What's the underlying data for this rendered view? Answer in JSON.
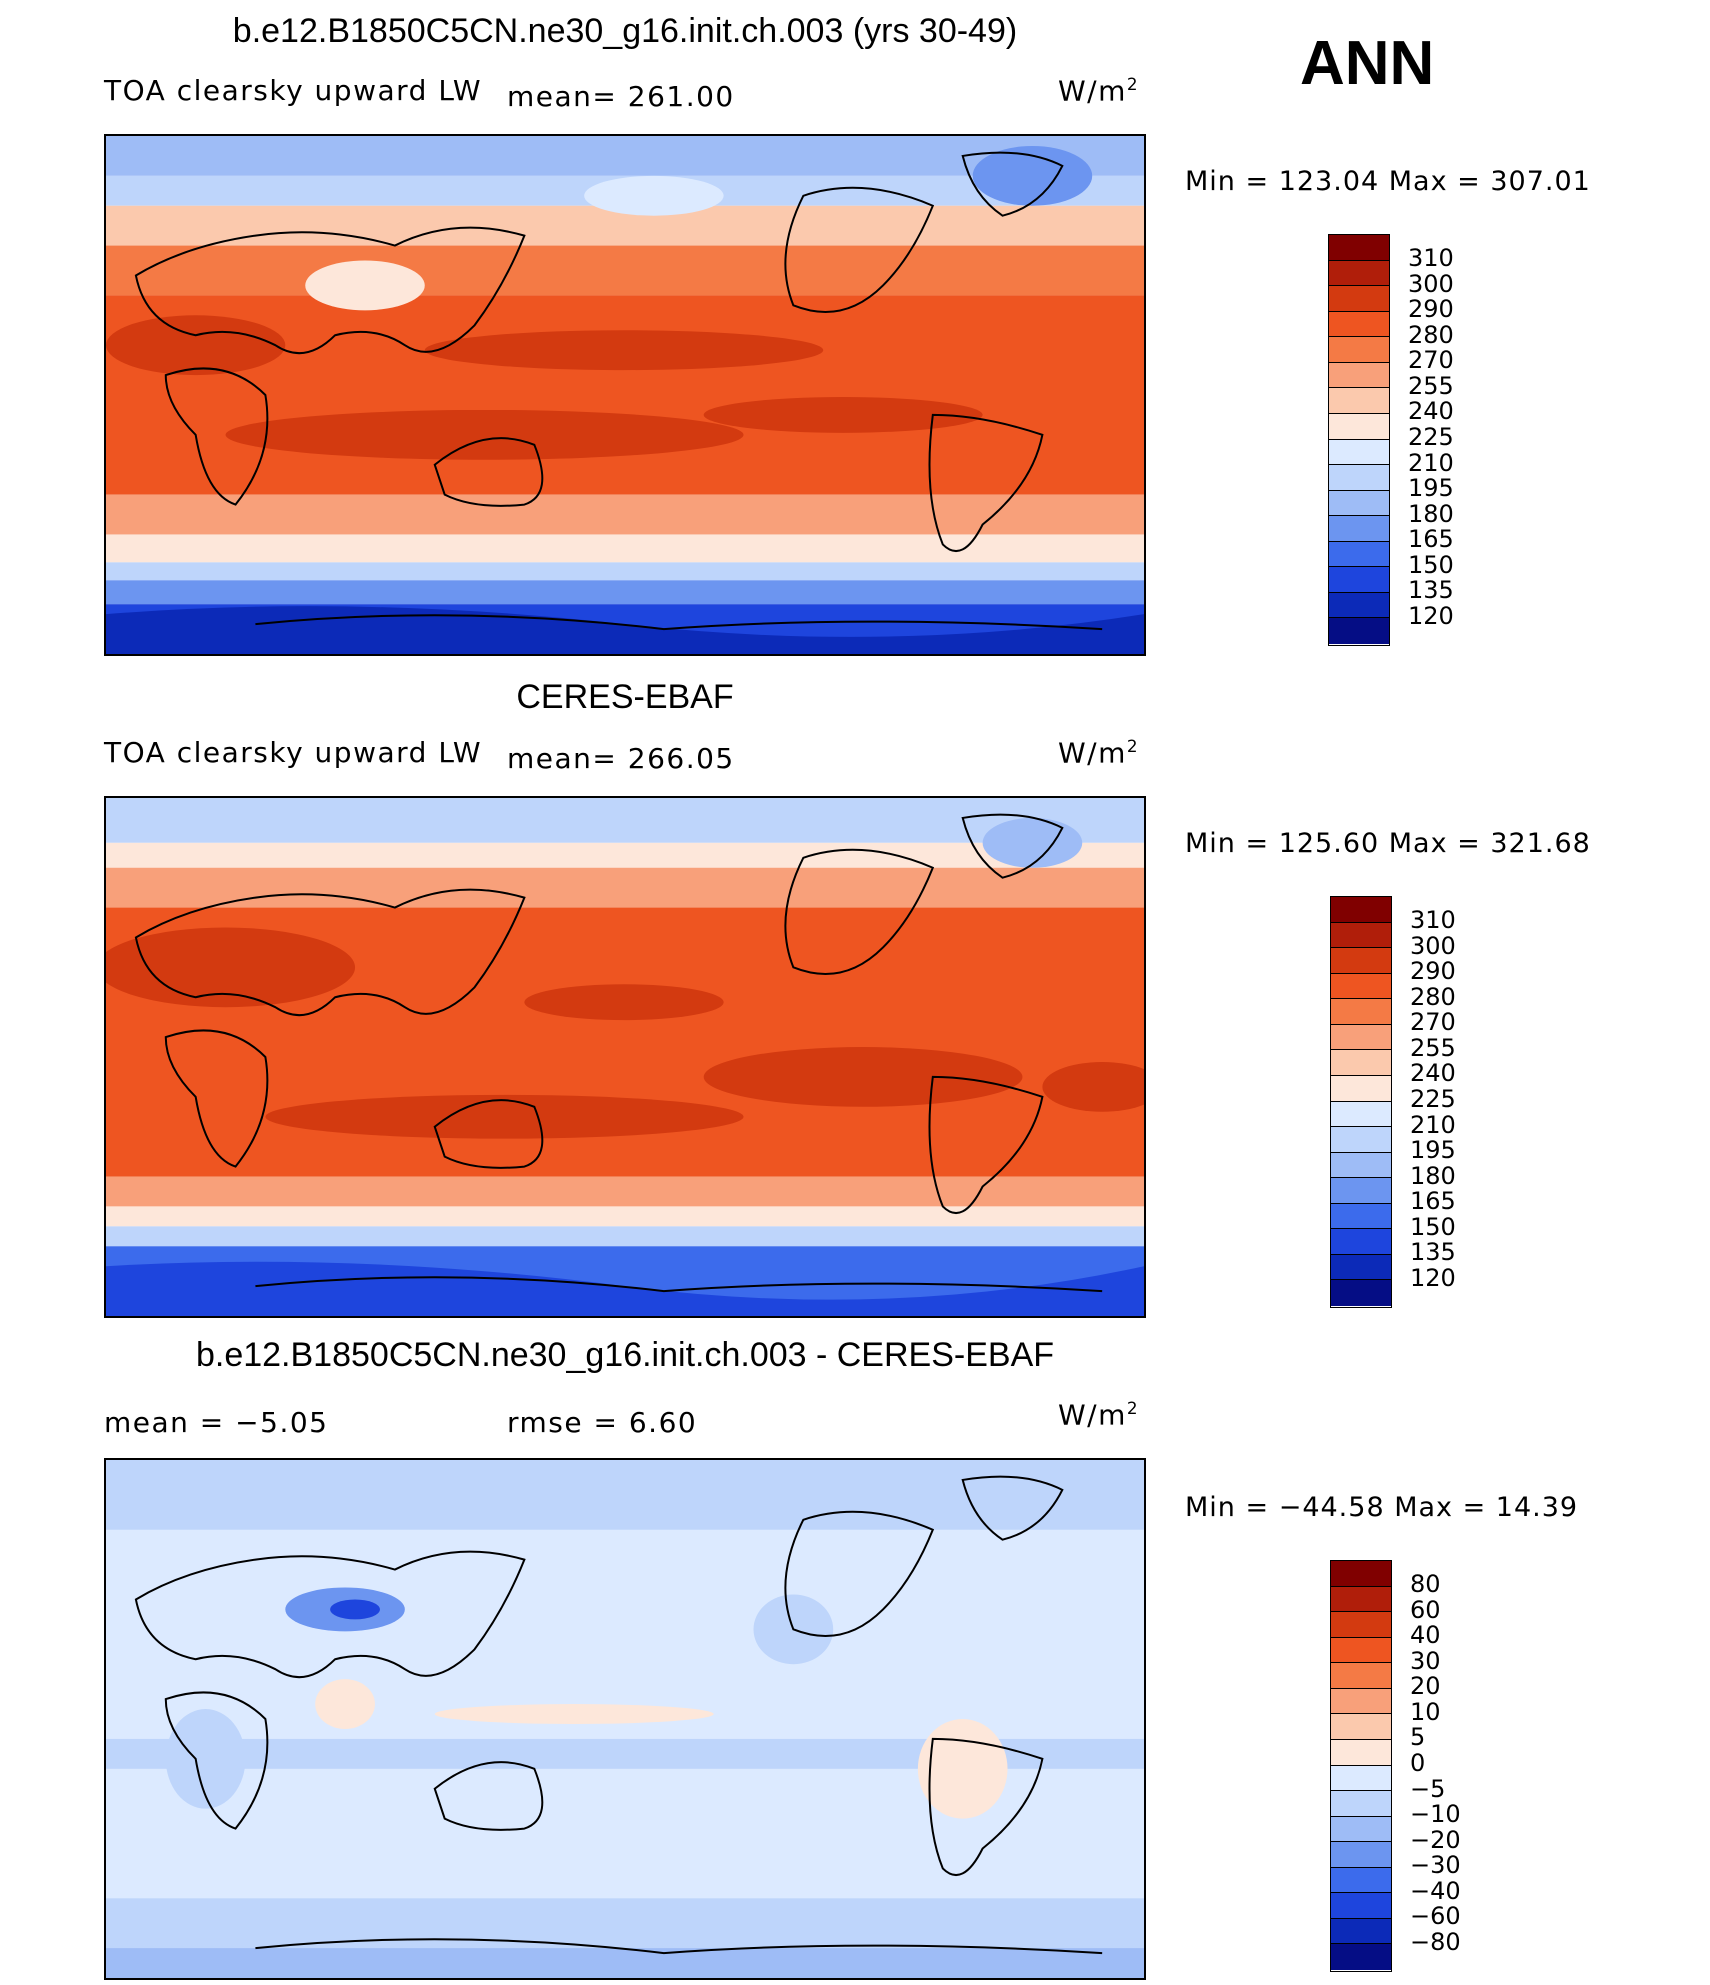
{
  "season": "ANN",
  "units_label": "W/m",
  "units_exp": "2",
  "panels": [
    {
      "title": "b.e12.B1850C5CN.ne30_g16.init.ch.003 (yrs 30-49)",
      "left_label": "TOA clearsky upward LW",
      "stat": "mean=  261.00",
      "min_max": "Min  =  123.04  Max  =  307.01",
      "colorbar": {
        "levels": [
          "310",
          "300",
          "290",
          "280",
          "270",
          "255",
          "240",
          "225",
          "210",
          "195",
          "180",
          "165",
          "150",
          "135",
          "120"
        ],
        "colors": [
          "#800000",
          "#b01e0a",
          "#d33a10",
          "#ee5521",
          "#f47a45",
          "#f8a07a",
          "#fbc9ad",
          "#fde7da",
          "#dceaff",
          "#bed5fb",
          "#9ebcf6",
          "#6c95f0",
          "#3c6bec",
          "#1e45dd",
          "#0c2ab8",
          "#050d85"
        ]
      }
    },
    {
      "title": "CERES-EBAF",
      "left_label": "TOA clearsky upward LW",
      "stat": "mean=  266.05",
      "min_max": "Min  =  125.60  Max  =  321.68",
      "colorbar": {
        "levels": [
          "310",
          "300",
          "290",
          "280",
          "270",
          "255",
          "240",
          "225",
          "210",
          "195",
          "180",
          "165",
          "150",
          "135",
          "120"
        ],
        "colors": [
          "#800000",
          "#b01e0a",
          "#d33a10",
          "#ee5521",
          "#f47a45",
          "#f8a07a",
          "#fbc9ad",
          "#fde7da",
          "#dceaff",
          "#bed5fb",
          "#9ebcf6",
          "#6c95f0",
          "#3c6bec",
          "#1e45dd",
          "#0c2ab8",
          "#050d85"
        ]
      }
    },
    {
      "title": "b.e12.B1850C5CN.ne30_g16.init.ch.003 - CERES-EBAF",
      "left_label": "mean  =    −5.05",
      "stat": "rmse  =     6.60",
      "min_max": "Min  =  −44.58  Max  =    14.39",
      "colorbar": {
        "levels": [
          "80",
          "60",
          "40",
          "30",
          "20",
          "10",
          "5",
          "0",
          "−5",
          "−10",
          "−20",
          "−30",
          "−40",
          "−60",
          "−80"
        ],
        "colors": [
          "#800000",
          "#b01e0a",
          "#d33a10",
          "#ee5521",
          "#f47a45",
          "#f8a07a",
          "#fbc9ad",
          "#fde7da",
          "#dceaff",
          "#bed5fb",
          "#9ebcf6",
          "#6c95f0",
          "#3c6bec",
          "#1e45dd",
          "#0c2ab8",
          "#050d85"
        ]
      }
    }
  ]
}
